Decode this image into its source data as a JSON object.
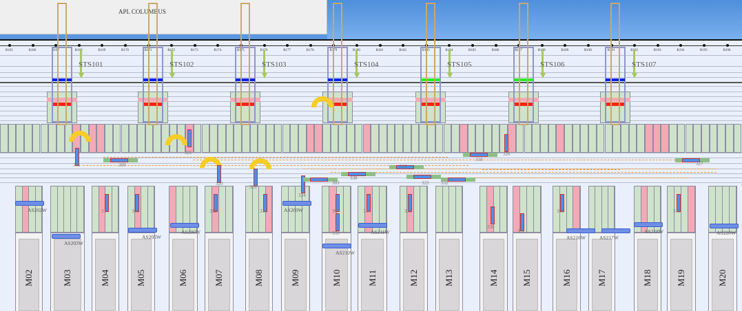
{
  "vessel": {
    "name": "APL COLUMBUS"
  },
  "bollards": [
    "B165",
    "B166",
    "B167",
    "B168",
    "B169",
    "B170",
    "B171",
    "B172",
    "B173",
    "B174",
    "B175",
    "B176",
    "B177",
    "B178",
    "B179",
    "B180",
    "B181",
    "B182",
    "B183",
    "B184",
    "B185",
    "B186",
    "B187",
    "B188",
    "B189",
    "B190",
    "B191",
    "B192",
    "B193",
    "B194",
    "B195",
    "B196"
  ],
  "cranes": [
    {
      "name": "STS101",
      "status_color": "#0022ee"
    },
    {
      "name": "STS102",
      "status_color": "#0022ee"
    },
    {
      "name": "STS103",
      "status_color": "#0022ee"
    },
    {
      "name": "STS104",
      "status_color": "#0022ee"
    },
    {
      "name": "STS105",
      "status_color": "#22ee22"
    },
    {
      "name": "STS106",
      "status_color": "#22ee22"
    },
    {
      "name": "STS107",
      "status_color": "#0022ee"
    }
  ],
  "blocks": [
    "M02",
    "M03",
    "M04",
    "M05",
    "M06",
    "M07",
    "M08",
    "M09",
    "M10",
    "M11",
    "M12",
    "M13",
    "M14",
    "M15",
    "M16",
    "M17",
    "M18",
    "M19",
    "M20"
  ],
  "yard_cranes": [
    "AS202W",
    "AS203W",
    "AS205W",
    "AS206W",
    "AS209W",
    "AS210W",
    "AS211W",
    "AS216W",
    "AS217W",
    "AS218W",
    "AS220W"
  ],
  "vehicles": [
    "305",
    "309",
    "321",
    "320",
    "303",
    "324",
    "317",
    "306",
    "312",
    "334",
    "307",
    "333",
    "314",
    "319",
    "330",
    "331",
    "308",
    "315",
    "303",
    "338",
    "316",
    "322",
    "332",
    "318",
    "326",
    "327"
  ],
  "colors": {
    "occupied": "#f4a9b6",
    "free": "#cfe3cb",
    "vehicle": "#4c8fe8",
    "route": "#ef9a3c",
    "accent": "#0022ee"
  }
}
